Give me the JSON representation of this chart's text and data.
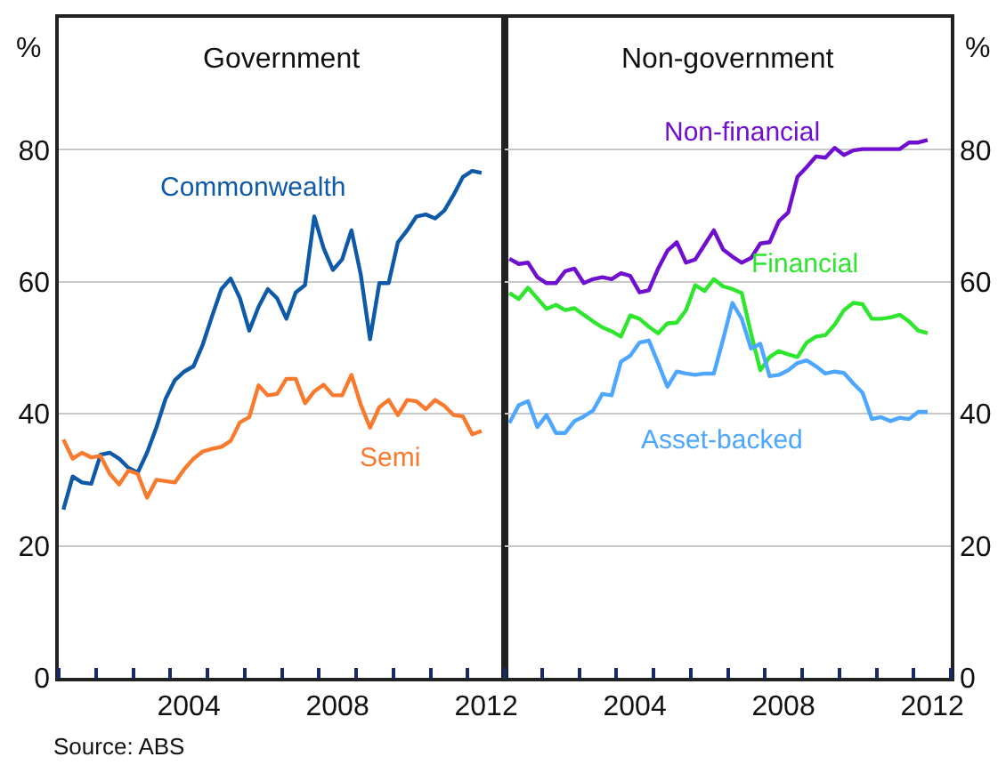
{
  "chart_data": [
    {
      "type": "line",
      "title": "Government",
      "ylabel": "%",
      "grid": "y",
      "x": [
        2000.625,
        2000.875,
        2001.125,
        2001.375,
        2001.625,
        2001.875,
        2002.125,
        2002.375,
        2002.625,
        2002.875,
        2003.125,
        2003.375,
        2003.625,
        2003.875,
        2004.125,
        2004.375,
        2004.625,
        2004.875,
        2005.125,
        2005.375,
        2005.625,
        2005.875,
        2006.125,
        2006.375,
        2006.625,
        2006.875,
        2007.125,
        2007.375,
        2007.625,
        2007.875,
        2008.125,
        2008.375,
        2008.625,
        2008.875,
        2009.125,
        2009.375,
        2009.625,
        2009.875,
        2010.125,
        2010.375,
        2010.625,
        2010.875,
        2011.125,
        2011.375,
        2011.625,
        2011.875
      ],
      "xlim": [
        2000.5,
        2012.5
      ],
      "xticks": [
        {
          "value": 2000.5,
          "label": null
        },
        {
          "value": 2001.5,
          "label": null
        },
        {
          "value": 2002.5,
          "label": null
        },
        {
          "value": 2003.5,
          "label": null
        },
        2004,
        {
          "value": 2004.5,
          "label": null
        },
        {
          "value": 2005.5,
          "label": null
        },
        {
          "value": 2006.5,
          "label": null
        },
        {
          "value": 2007.5,
          "label": null
        },
        2008,
        {
          "value": 2008.5,
          "label": null
        },
        {
          "value": 2009.5,
          "label": null
        },
        {
          "value": 2010.5,
          "label": null
        },
        {
          "value": 2011.5,
          "label": null
        },
        2012,
        {
          "value": 2012.5,
          "label": null
        }
      ],
      "ylim": [
        0,
        100
      ],
      "yticks": [
        0,
        20,
        40,
        60,
        80
      ],
      "annotations": [
        "Source: ABS"
      ],
      "series": [
        {
          "name": "Commonwealth",
          "color": "#0f5aa8",
          "values": [
            25.5,
            30.5,
            29.6,
            29.4,
            33.8,
            34.1,
            33.2,
            31.8,
            31.1,
            34.1,
            37.9,
            42.3,
            45.1,
            46.4,
            47.2,
            50.5,
            54.8,
            58.9,
            60.5,
            57.5,
            52.6,
            56.2,
            58.9,
            57.5,
            54.4,
            58.4,
            59.5,
            69.9,
            65.1,
            61.8,
            63.4,
            67.8,
            61.1,
            51.3,
            59.8,
            59.8,
            66.0,
            67.8,
            69.9,
            70.2,
            69.6,
            70.8,
            73.2,
            75.9,
            76.8,
            76.5
          ]
        },
        {
          "name": "Semi",
          "color": "#f97a2d",
          "values": [
            36.1,
            33.2,
            34.1,
            33.4,
            33.6,
            30.9,
            29.3,
            31.4,
            30.9,
            27.3,
            30.0,
            29.8,
            29.6,
            31.6,
            33.2,
            34.3,
            34.7,
            35.0,
            35.9,
            38.7,
            39.5,
            44.3,
            42.8,
            43.0,
            45.3,
            45.3,
            41.6,
            43.4,
            44.4,
            42.8,
            42.8,
            45.9,
            41.4,
            37.9,
            41.0,
            42.1,
            39.8,
            42.1,
            41.9,
            40.7,
            42.1,
            41.2,
            39.8,
            39.6,
            36.9,
            37.4
          ]
        }
      ]
    },
    {
      "type": "line",
      "title": "Non-government",
      "ylabel": "%",
      "grid": "y",
      "x": [
        2000.625,
        2000.875,
        2001.125,
        2001.375,
        2001.625,
        2001.875,
        2002.125,
        2002.375,
        2002.625,
        2002.875,
        2003.125,
        2003.375,
        2003.625,
        2003.875,
        2004.125,
        2004.375,
        2004.625,
        2004.875,
        2005.125,
        2005.375,
        2005.625,
        2005.875,
        2006.125,
        2006.375,
        2006.625,
        2006.875,
        2007.125,
        2007.375,
        2007.625,
        2007.875,
        2008.125,
        2008.375,
        2008.625,
        2008.875,
        2009.125,
        2009.375,
        2009.625,
        2009.875,
        2010.125,
        2010.375,
        2010.625,
        2010.875,
        2011.125,
        2011.375,
        2011.625,
        2011.875
      ],
      "xlim": [
        2000.5,
        2012.5
      ],
      "xticks": [
        {
          "value": 2000.5,
          "label": null
        },
        {
          "value": 2001.5,
          "label": null
        },
        {
          "value": 2002.5,
          "label": null
        },
        {
          "value": 2003.5,
          "label": null
        },
        2004,
        {
          "value": 2004.5,
          "label": null
        },
        {
          "value": 2005.5,
          "label": null
        },
        {
          "value": 2006.5,
          "label": null
        },
        {
          "value": 2007.5,
          "label": null
        },
        2008,
        {
          "value": 2008.5,
          "label": null
        },
        {
          "value": 2009.5,
          "label": null
        },
        {
          "value": 2010.5,
          "label": null
        },
        {
          "value": 2011.5,
          "label": null
        },
        2012,
        {
          "value": 2012.5,
          "label": null
        }
      ],
      "ylim": [
        0,
        100
      ],
      "yticks": [
        0,
        20,
        40,
        60,
        80
      ],
      "series": [
        {
          "name": "Non-financial",
          "color": "#6f0fd0",
          "values": [
            63.5,
            62.7,
            62.9,
            60.7,
            59.8,
            59.8,
            61.6,
            62.0,
            59.8,
            60.4,
            60.7,
            60.4,
            61.3,
            60.9,
            58.4,
            58.7,
            62.0,
            64.7,
            66.0,
            62.9,
            63.4,
            65.6,
            67.8,
            64.9,
            63.8,
            62.9,
            63.6,
            65.8,
            66.0,
            69.2,
            70.5,
            75.9,
            77.4,
            79.0,
            78.8,
            80.3,
            79.2,
            79.9,
            80.1,
            80.1,
            80.1,
            80.1,
            80.1,
            81.1,
            81.1,
            81.5
          ]
        },
        {
          "name": "Financial",
          "color": "#2ee62e",
          "values": [
            58.3,
            57.4,
            59.1,
            57.5,
            55.9,
            56.5,
            55.7,
            56.0,
            55.0,
            54.0,
            53.1,
            52.5,
            51.7,
            54.9,
            54.4,
            53.2,
            52.2,
            53.7,
            53.8,
            55.7,
            59.5,
            58.6,
            60.4,
            59.3,
            58.9,
            58.3,
            52.2,
            46.6,
            48.6,
            49.5,
            49.0,
            48.6,
            50.8,
            51.7,
            51.9,
            53.5,
            55.7,
            56.8,
            56.6,
            54.4,
            54.4,
            54.6,
            55.0,
            54.0,
            52.6,
            52.2
          ]
        },
        {
          "name": "Asset-backed",
          "color": "#4da6ff",
          "values": [
            38.6,
            41.3,
            41.9,
            38.0,
            39.8,
            37.1,
            37.1,
            38.9,
            39.6,
            40.5,
            43.0,
            42.8,
            47.9,
            48.8,
            50.8,
            51.1,
            47.7,
            44.1,
            46.4,
            46.1,
            45.9,
            46.1,
            46.1,
            51.3,
            56.8,
            54.4,
            49.9,
            50.6,
            45.7,
            45.9,
            46.6,
            47.7,
            48.1,
            47.2,
            46.1,
            46.4,
            46.2,
            44.6,
            43.2,
            39.2,
            39.5,
            38.9,
            39.4,
            39.2,
            40.3,
            40.3
          ]
        }
      ]
    }
  ]
}
